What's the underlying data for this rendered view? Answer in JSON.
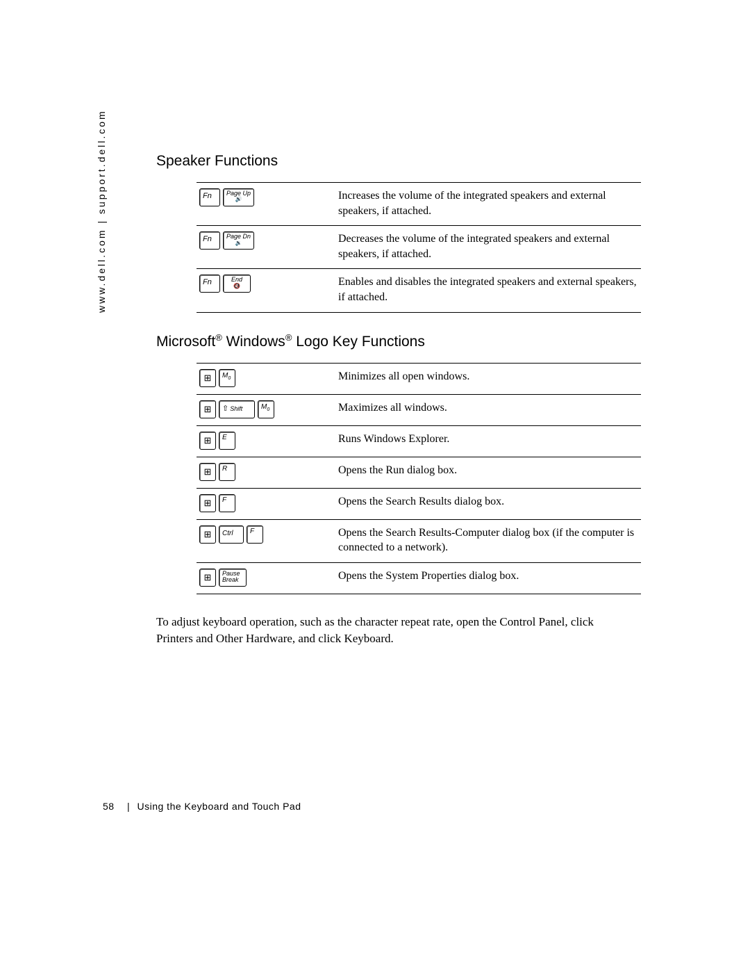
{
  "sidebar_url": "www.dell.com | support.dell.com",
  "section1_title": "Speaker Functions",
  "speaker_rows": [
    {
      "keys": [
        {
          "t": "fn",
          "label": "Fn"
        },
        {
          "t": "pg",
          "label": "Page Up",
          "sub": "🔊"
        }
      ],
      "desc": "Increases the volume of the integrated speakers and external speakers, if attached."
    },
    {
      "keys": [
        {
          "t": "fn",
          "label": "Fn"
        },
        {
          "t": "pg",
          "label": "Page Dn",
          "sub": "🔉"
        }
      ],
      "desc": "Decreases the volume of the integrated speakers and external speakers, if attached."
    },
    {
      "keys": [
        {
          "t": "fn",
          "label": "Fn"
        },
        {
          "t": "pg",
          "label": "End",
          "sub": "🔇"
        }
      ],
      "desc": "Enables and disables the integrated speakers and external speakers, if attached."
    }
  ],
  "section2_title_parts": [
    "Microsoft",
    "®",
    " Windows",
    "®",
    " Logo Key Functions"
  ],
  "win_rows": [
    {
      "keys": [
        {
          "t": "win"
        },
        {
          "t": "m"
        }
      ],
      "desc": "Minimizes all open windows."
    },
    {
      "keys": [
        {
          "t": "win"
        },
        {
          "t": "shift"
        },
        {
          "t": "m"
        }
      ],
      "desc": "Maximizes all windows."
    },
    {
      "keys": [
        {
          "t": "win"
        },
        {
          "t": "letter",
          "label": "E"
        }
      ],
      "desc": "Runs Windows Explorer."
    },
    {
      "keys": [
        {
          "t": "win"
        },
        {
          "t": "letter",
          "label": "R"
        }
      ],
      "desc": "Opens the Run dialog box."
    },
    {
      "keys": [
        {
          "t": "win"
        },
        {
          "t": "letter",
          "label": "F"
        }
      ],
      "desc": "Opens the Search Results dialog box."
    },
    {
      "keys": [
        {
          "t": "win"
        },
        {
          "t": "ctrl"
        },
        {
          "t": "letter",
          "label": "F"
        }
      ],
      "desc": "Opens the Search Results-Computer dialog box (if the computer is connected to a network)."
    },
    {
      "keys": [
        {
          "t": "win"
        },
        {
          "t": "pause"
        }
      ],
      "desc": "Opens the System Properties dialog box."
    }
  ],
  "bottom_para": "To adjust keyboard operation, such as the character repeat rate, open the Control Panel, click Printers and Other Hardware, and click Keyboard.",
  "page_number": "58",
  "footer_title": "Using the Keyboard and Touch Pad"
}
